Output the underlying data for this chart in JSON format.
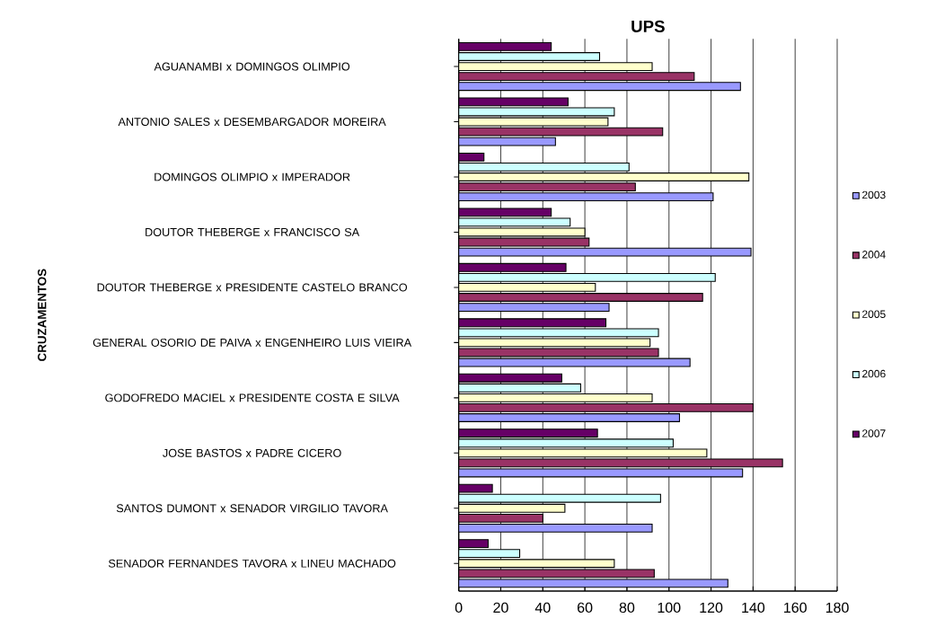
{
  "chart_data": {
    "type": "bar",
    "orientation": "horizontal",
    "title": "UPS",
    "ylabel": "CRUZAMENTOS",
    "categories": [
      "AGUANAMBI  x  DOMINGOS OLIMPIO",
      "ANTONIO SALES  x  DESEMBARGADOR MOREIRA",
      "DOMINGOS OLIMPIO  x  IMPERADOR",
      "DOUTOR THEBERGE  x  FRANCISCO SA",
      "DOUTOR THEBERGE  x  PRESIDENTE CASTELO BRANCO",
      "GENERAL OSORIO DE PAIVA  x  ENGENHEIRO LUIS VIEIRA",
      "GODOFREDO MACIEL  x  PRESIDENTE COSTA E SILVA",
      "JOSE BASTOS  x  PADRE CICERO",
      "SANTOS DUMONT  x  SENADOR VIRGILIO TAVORA",
      "SENADOR FERNANDES TAVORA  x  LINEU MACHADO"
    ],
    "series": [
      {
        "name": "2003",
        "color": "#9999ff",
        "values": [
          134,
          46,
          121,
          139,
          71.5,
          110,
          105,
          135,
          92,
          128
        ]
      },
      {
        "name": "2004",
        "color": "#993366",
        "values": [
          112,
          97,
          84,
          62,
          116,
          95,
          140,
          154,
          40,
          93
        ]
      },
      {
        "name": "2005",
        "color": "#ffffcc",
        "values": [
          92,
          71,
          138,
          60,
          65,
          91,
          92,
          118,
          50.5,
          74
        ]
      },
      {
        "name": "2006",
        "color": "#ccffff",
        "values": [
          67,
          74,
          81,
          53,
          122,
          95,
          58,
          102,
          96,
          29
        ]
      },
      {
        "name": "2007",
        "color": "#660066",
        "values": [
          44,
          52,
          12,
          44,
          51,
          70,
          49,
          66,
          16,
          14
        ]
      }
    ],
    "xlim": [
      0,
      180
    ],
    "xticks": [
      0,
      20,
      40,
      60,
      80,
      100,
      120,
      140,
      160,
      180
    ],
    "grid": "x",
    "legend": "right"
  }
}
